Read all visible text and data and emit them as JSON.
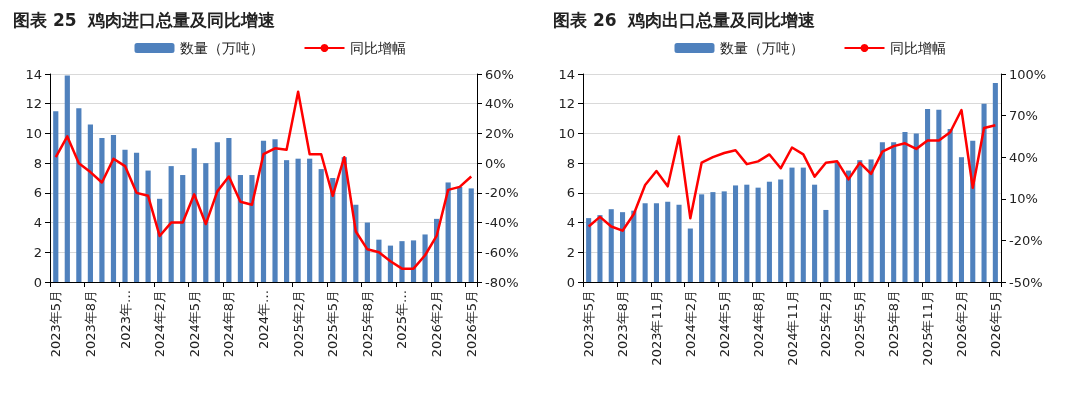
{
  "chart_data": [
    {
      "type": "bar",
      "title": "图表 25  鸡肉进口总量及同比增速",
      "categories": [
        "2023年5月",
        null,
        null,
        "2023年8月",
        null,
        null,
        "2023年…",
        null,
        null,
        "2024年2月",
        null,
        null,
        "2024年5月",
        null,
        null,
        "2024年8月",
        null,
        null,
        "2024年…",
        null,
        null,
        "2025年2月",
        null,
        null,
        "2025年5月",
        null,
        null,
        "2025年8月",
        null,
        null,
        "2025年…",
        null,
        null,
        "2026年2月",
        null,
        null,
        "2026年5月"
      ],
      "series": [
        {
          "name": "数量（万吨）",
          "color": "#4f81bd",
          "values": [
            11.5,
            13.9,
            11.7,
            10.6,
            9.7,
            9.9,
            8.9,
            8.7,
            7.5,
            5.6,
            7.8,
            7.2,
            9.0,
            8.0,
            9.4,
            9.7,
            7.2,
            7.2,
            9.5,
            9.6,
            8.2,
            8.3,
            8.3,
            7.6,
            7.0,
            8.4,
            5.2,
            4.0,
            2.85,
            2.45,
            2.75,
            2.8,
            3.2,
            4.25,
            6.7,
            6.4,
            6.3
          ]
        },
        {
          "name": "同比增幅",
          "type": "line",
          "axis": "y2",
          "color": "#ff0000",
          "values": [
            4,
            18,
            0,
            -6,
            -13,
            3,
            -2,
            -20,
            -22,
            -49,
            -40,
            -40,
            -21,
            -41,
            -19,
            -9,
            -26,
            -28,
            6,
            10,
            9,
            48,
            6,
            6,
            -22,
            4,
            -46,
            -58,
            -60,
            -66,
            -71,
            -71,
            -62,
            -49,
            -18,
            -16,
            -9
          ]
        }
      ],
      "ylim": [
        0,
        14
      ],
      "yticks": [
        0,
        2,
        4,
        6,
        8,
        10,
        12,
        14
      ],
      "y2lim": [
        -80,
        60
      ],
      "y2ticks": [
        {
          "value": -80,
          "label": "-80%"
        },
        {
          "value": -60,
          "label": "-60%"
        },
        {
          "value": -40,
          "label": "-40%"
        },
        {
          "value": -20,
          "label": "-20%"
        },
        {
          "value": 0,
          "label": "0%"
        },
        {
          "value": 20,
          "label": "20%"
        },
        {
          "value": 40,
          "label": "40%"
        },
        {
          "value": 60,
          "label": "60%"
        }
      ],
      "grid": "y",
      "legend": "top",
      "marker": "none",
      "line_style": "solid"
    },
    {
      "type": "bar",
      "title": "图表 26  鸡肉出口总量及同比增速",
      "categories": [
        "2023年5月",
        null,
        null,
        "2023年8月",
        null,
        null,
        "2023年11月",
        null,
        null,
        "2024年2月",
        null,
        null,
        "2024年5月",
        null,
        null,
        "2024年8月",
        null,
        null,
        "2024年11月",
        null,
        null,
        "2025年2月",
        null,
        null,
        "2025年5月",
        null,
        null,
        "2025年8月",
        null,
        null,
        "2025年11月",
        null,
        null,
        "2026年2月",
        null,
        null,
        "2026年5月"
      ],
      "series": [
        {
          "name": "数量（万吨）",
          "color": "#4f81bd",
          "values": [
            4.3,
            4.5,
            4.9,
            4.7,
            4.8,
            5.3,
            5.3,
            5.4,
            5.2,
            3.6,
            5.9,
            6.05,
            6.1,
            6.5,
            6.55,
            6.35,
            6.75,
            6.9,
            7.7,
            7.7,
            6.55,
            4.85,
            8.05,
            7.5,
            8.2,
            8.25,
            9.4,
            9.4,
            10.1,
            10.0,
            11.65,
            11.6,
            10.3,
            8.4,
            9.5,
            12.0,
            13.4
          ]
        },
        {
          "name": "同比增幅",
          "type": "line",
          "axis": "y2",
          "color": "#ff0000",
          "values": [
            -10,
            -3,
            -10,
            -13,
            -1,
            20,
            30,
            19,
            55,
            -4,
            36,
            40,
            43,
            45,
            35,
            37,
            42,
            32,
            47,
            42,
            26,
            36,
            37,
            24,
            36,
            28,
            44,
            48,
            50,
            46,
            52,
            52,
            58,
            74,
            18,
            61,
            63
          ]
        }
      ],
      "ylim": [
        0,
        14
      ],
      "yticks": [
        0,
        2,
        4,
        6,
        8,
        10,
        12,
        14
      ],
      "y2lim": [
        -50,
        100
      ],
      "y2ticks": [
        {
          "value": -50,
          "label": "-50%"
        },
        {
          "value": -20,
          "label": "-20%"
        },
        {
          "value": 10,
          "label": "10%"
        },
        {
          "value": 40,
          "label": "40%"
        },
        {
          "value": 70,
          "label": "70%"
        },
        {
          "value": 100,
          "label": "100%"
        }
      ],
      "grid": "y",
      "legend": "top",
      "marker": "none",
      "line_style": "solid"
    }
  ]
}
